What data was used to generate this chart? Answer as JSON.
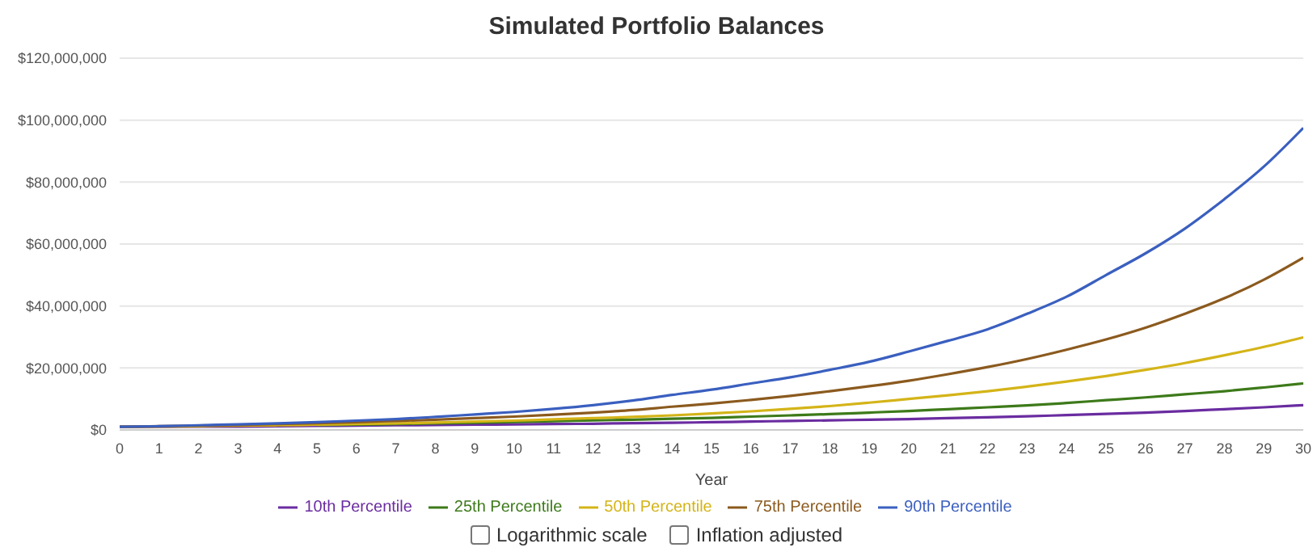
{
  "chart_data": {
    "type": "line",
    "title": "Simulated Portfolio Balances",
    "xlabel": "Year",
    "x": [
      0,
      1,
      2,
      3,
      4,
      5,
      6,
      7,
      8,
      9,
      10,
      11,
      12,
      13,
      14,
      15,
      16,
      17,
      18,
      19,
      20,
      21,
      22,
      23,
      24,
      25,
      26,
      27,
      28,
      29,
      30
    ],
    "series": [
      {
        "name": "10th Percentile",
        "color": "#6a2ca0",
        "values": [
          1000000,
          1000000,
          1100000,
          1100000,
          1200000,
          1300000,
          1400000,
          1500000,
          1600000,
          1700000,
          1800000,
          1900000,
          2000000,
          2200000,
          2300000,
          2500000,
          2700000,
          2900000,
          3100000,
          3300000,
          3500000,
          3800000,
          4100000,
          4400000,
          4800000,
          5200000,
          5600000,
          6100000,
          6700000,
          7300000,
          8000000
        ]
      },
      {
        "name": "25th Percentile",
        "color": "#3d7a1a",
        "values": [
          null,
          null,
          null,
          null,
          null,
          1600000,
          1700000,
          1900000,
          2100000,
          2300000,
          2600000,
          2800000,
          3100000,
          3300000,
          3600000,
          3900000,
          4300000,
          4700000,
          5100000,
          5600000,
          6100000,
          6700000,
          7300000,
          7900000,
          8700000,
          9600000,
          10500000,
          11500000,
          12500000,
          13700000,
          15000000
        ]
      },
      {
        "name": "50th Percentile",
        "color": "#d4b418",
        "values": [
          1000000,
          1100000,
          1200000,
          1400000,
          1500000,
          1700000,
          1900000,
          2100000,
          2400000,
          2700000,
          3000000,
          3400000,
          3800000,
          4200000,
          4700000,
          5300000,
          6000000,
          6800000,
          7700000,
          8800000,
          10000000,
          11200000,
          12500000,
          14000000,
          15600000,
          17400000,
          19400000,
          21600000,
          24100000,
          26800000,
          29900000
        ]
      },
      {
        "name": "75th Percentile",
        "color": "#8b5a1e",
        "values": [
          1000000,
          1200000,
          1400000,
          1600000,
          1900000,
          2200000,
          2500000,
          2900000,
          3300000,
          3800000,
          4300000,
          4900000,
          5600000,
          6400000,
          7500000,
          8500000,
          9700000,
          11000000,
          12500000,
          14100000,
          15900000,
          18000000,
          20300000,
          22900000,
          25900000,
          29200000,
          33000000,
          37500000,
          42500000,
          48500000,
          55600000
        ]
      },
      {
        "name": "90th Percentile",
        "color": "#3a5fbf",
        "values": [
          1000000,
          1200000,
          1500000,
          1800000,
          2100000,
          2500000,
          3000000,
          3500000,
          4200000,
          5000000,
          5800000,
          6800000,
          8000000,
          9500000,
          11300000,
          13000000,
          15000000,
          17000000,
          19400000,
          22000000,
          25300000,
          28800000,
          32500000,
          37500000,
          43000000,
          50000000,
          57000000,
          65000000,
          74500000,
          85000000,
          97500000
        ]
      }
    ],
    "xlim": [
      0,
      30
    ],
    "xticks": [
      0,
      1,
      2,
      3,
      4,
      5,
      6,
      7,
      8,
      9,
      10,
      11,
      12,
      13,
      14,
      15,
      16,
      17,
      18,
      19,
      20,
      21,
      22,
      23,
      24,
      25,
      26,
      27,
      28,
      29,
      30
    ],
    "ylim": [
      0,
      120000000
    ],
    "yticks": [
      {
        "value": 0,
        "label": "$0"
      },
      {
        "value": 20000000,
        "label": "$20,000,000"
      },
      {
        "value": 40000000,
        "label": "$40,000,000"
      },
      {
        "value": 60000000,
        "label": "$60,000,000"
      },
      {
        "value": 80000000,
        "label": "$80,000,000"
      },
      {
        "value": 100000000,
        "label": "$100,000,000"
      },
      {
        "value": 120000000,
        "label": "$120,000,000"
      }
    ],
    "grid": "y",
    "legend": "bottom",
    "marker": "none",
    "line_style": "solid",
    "annotations": [
      "Logarithmic scale",
      "Inflation adjusted"
    ]
  }
}
